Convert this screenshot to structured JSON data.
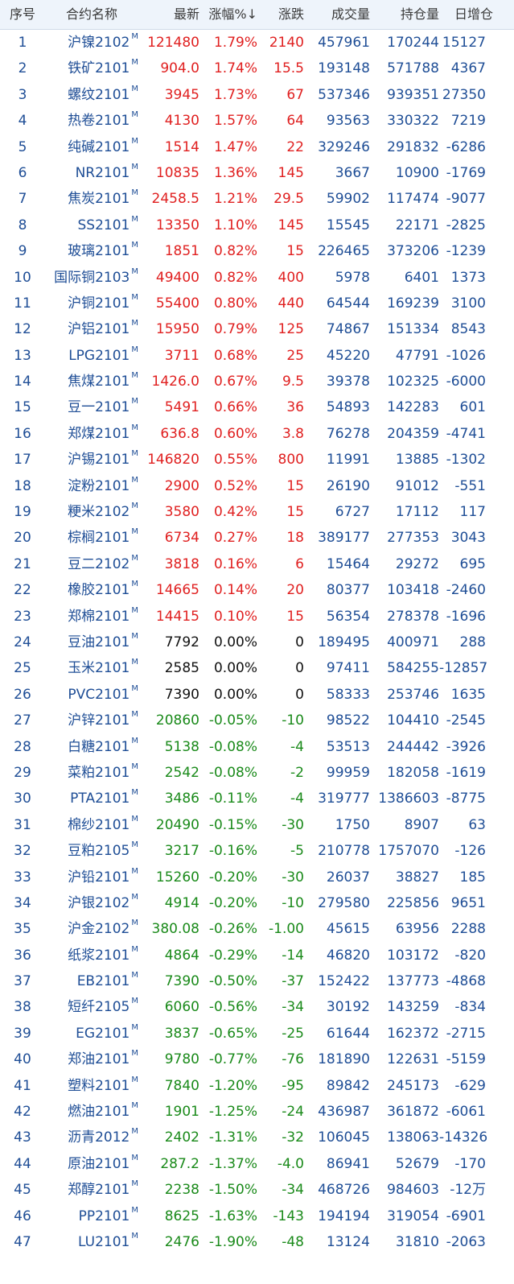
{
  "headers": {
    "idx": "序号",
    "name": "合约名称",
    "price": "最新",
    "pct": "涨幅%↓",
    "chg": "涨跌",
    "vol": "成交量",
    "oi": "持仓量",
    "day": "日增仓"
  },
  "main_badge": "M",
  "colors": {
    "up": "#e02020",
    "down": "#1a8a1a",
    "flat": "#111111",
    "text": "#1f4e96"
  },
  "rows": [
    {
      "idx": "1",
      "name": "沪镍2102",
      "price": "121480",
      "pct": "1.79%",
      "chg": "2140",
      "vol": "457961",
      "oi": "170244",
      "day": "15127",
      "dir": "up"
    },
    {
      "idx": "2",
      "name": "铁矿2101",
      "price": "904.0",
      "pct": "1.74%",
      "chg": "15.5",
      "vol": "193148",
      "oi": "571788",
      "day": "4367",
      "dir": "up"
    },
    {
      "idx": "3",
      "name": "螺纹2101",
      "price": "3945",
      "pct": "1.73%",
      "chg": "67",
      "vol": "537346",
      "oi": "939351",
      "day": "27350",
      "dir": "up"
    },
    {
      "idx": "4",
      "name": "热卷2101",
      "price": "4130",
      "pct": "1.57%",
      "chg": "64",
      "vol": "93563",
      "oi": "330322",
      "day": "7219",
      "dir": "up"
    },
    {
      "idx": "5",
      "name": "纯碱2101",
      "price": "1514",
      "pct": "1.47%",
      "chg": "22",
      "vol": "329246",
      "oi": "291832",
      "day": "-6286",
      "dir": "up"
    },
    {
      "idx": "6",
      "name": "NR2101",
      "price": "10835",
      "pct": "1.36%",
      "chg": "145",
      "vol": "3667",
      "oi": "10900",
      "day": "-1769",
      "dir": "up"
    },
    {
      "idx": "7",
      "name": "焦炭2101",
      "price": "2458.5",
      "pct": "1.21%",
      "chg": "29.5",
      "vol": "59902",
      "oi": "117474",
      "day": "-9077",
      "dir": "up"
    },
    {
      "idx": "8",
      "name": "SS2101",
      "price": "13350",
      "pct": "1.10%",
      "chg": "145",
      "vol": "15545",
      "oi": "22171",
      "day": "-2825",
      "dir": "up"
    },
    {
      "idx": "9",
      "name": "玻璃2101",
      "price": "1851",
      "pct": "0.82%",
      "chg": "15",
      "vol": "226465",
      "oi": "373206",
      "day": "-1239",
      "dir": "up"
    },
    {
      "idx": "10",
      "name": "国际铜2103",
      "price": "49400",
      "pct": "0.82%",
      "chg": "400",
      "vol": "5978",
      "oi": "6401",
      "day": "1373",
      "dir": "up"
    },
    {
      "idx": "11",
      "name": "沪铜2101",
      "price": "55400",
      "pct": "0.80%",
      "chg": "440",
      "vol": "64544",
      "oi": "169239",
      "day": "3100",
      "dir": "up"
    },
    {
      "idx": "12",
      "name": "沪铝2101",
      "price": "15950",
      "pct": "0.79%",
      "chg": "125",
      "vol": "74867",
      "oi": "151334",
      "day": "8543",
      "dir": "up"
    },
    {
      "idx": "13",
      "name": "LPG2101",
      "price": "3711",
      "pct": "0.68%",
      "chg": "25",
      "vol": "45220",
      "oi": "47791",
      "day": "-1026",
      "dir": "up"
    },
    {
      "idx": "14",
      "name": "焦煤2101",
      "price": "1426.0",
      "pct": "0.67%",
      "chg": "9.5",
      "vol": "39378",
      "oi": "102325",
      "day": "-6000",
      "dir": "up"
    },
    {
      "idx": "15",
      "name": "豆一2101",
      "price": "5491",
      "pct": "0.66%",
      "chg": "36",
      "vol": "54893",
      "oi": "142283",
      "day": "601",
      "dir": "up"
    },
    {
      "idx": "16",
      "name": "郑煤2101",
      "price": "636.8",
      "pct": "0.60%",
      "chg": "3.8",
      "vol": "76278",
      "oi": "204359",
      "day": "-4741",
      "dir": "up"
    },
    {
      "idx": "17",
      "name": "沪锡2101",
      "price": "146820",
      "pct": "0.55%",
      "chg": "800",
      "vol": "11991",
      "oi": "13885",
      "day": "-1302",
      "dir": "up"
    },
    {
      "idx": "18",
      "name": "淀粉2101",
      "price": "2900",
      "pct": "0.52%",
      "chg": "15",
      "vol": "26190",
      "oi": "91012",
      "day": "-551",
      "dir": "up"
    },
    {
      "idx": "19",
      "name": "粳米2102",
      "price": "3580",
      "pct": "0.42%",
      "chg": "15",
      "vol": "6727",
      "oi": "17112",
      "day": "117",
      "dir": "up"
    },
    {
      "idx": "20",
      "name": "棕榈2101",
      "price": "6734",
      "pct": "0.27%",
      "chg": "18",
      "vol": "389177",
      "oi": "277353",
      "day": "3043",
      "dir": "up"
    },
    {
      "idx": "21",
      "name": "豆二2102",
      "price": "3818",
      "pct": "0.16%",
      "chg": "6",
      "vol": "15464",
      "oi": "29272",
      "day": "695",
      "dir": "up"
    },
    {
      "idx": "22",
      "name": "橡胶2101",
      "price": "14665",
      "pct": "0.14%",
      "chg": "20",
      "vol": "80377",
      "oi": "103418",
      "day": "-2460",
      "dir": "up"
    },
    {
      "idx": "23",
      "name": "郑棉2101",
      "price": "14415",
      "pct": "0.10%",
      "chg": "15",
      "vol": "56354",
      "oi": "278378",
      "day": "-1696",
      "dir": "up"
    },
    {
      "idx": "24",
      "name": "豆油2101",
      "price": "7792",
      "pct": "0.00%",
      "chg": "0",
      "vol": "189495",
      "oi": "400971",
      "day": "288",
      "dir": "flat"
    },
    {
      "idx": "25",
      "name": "玉米2101",
      "price": "2585",
      "pct": "0.00%",
      "chg": "0",
      "vol": "97411",
      "oi": "584255",
      "day": "-12857",
      "dir": "flat"
    },
    {
      "idx": "26",
      "name": "PVC2101",
      "price": "7390",
      "pct": "0.00%",
      "chg": "0",
      "vol": "58333",
      "oi": "253746",
      "day": "1635",
      "dir": "flat"
    },
    {
      "idx": "27",
      "name": "沪锌2101",
      "price": "20860",
      "pct": "-0.05%",
      "chg": "-10",
      "vol": "98522",
      "oi": "104410",
      "day": "-2545",
      "dir": "down"
    },
    {
      "idx": "28",
      "name": "白糖2101",
      "price": "5138",
      "pct": "-0.08%",
      "chg": "-4",
      "vol": "53513",
      "oi": "244442",
      "day": "-3926",
      "dir": "down"
    },
    {
      "idx": "29",
      "name": "菜粕2101",
      "price": "2542",
      "pct": "-0.08%",
      "chg": "-2",
      "vol": "99959",
      "oi": "182058",
      "day": "-1619",
      "dir": "down"
    },
    {
      "idx": "30",
      "name": "PTA2101",
      "price": "3486",
      "pct": "-0.11%",
      "chg": "-4",
      "vol": "319777",
      "oi": "1386603",
      "day": "-8775",
      "dir": "down"
    },
    {
      "idx": "31",
      "name": "棉纱2101",
      "price": "20490",
      "pct": "-0.15%",
      "chg": "-30",
      "vol": "1750",
      "oi": "8907",
      "day": "63",
      "dir": "down"
    },
    {
      "idx": "32",
      "name": "豆粕2105",
      "price": "3217",
      "pct": "-0.16%",
      "chg": "-5",
      "vol": "210778",
      "oi": "1757070",
      "day": "-126",
      "dir": "down"
    },
    {
      "idx": "33",
      "name": "沪铅2101",
      "price": "15260",
      "pct": "-0.20%",
      "chg": "-30",
      "vol": "26037",
      "oi": "38827",
      "day": "185",
      "dir": "down"
    },
    {
      "idx": "34",
      "name": "沪银2102",
      "price": "4914",
      "pct": "-0.20%",
      "chg": "-10",
      "vol": "279580",
      "oi": "225856",
      "day": "9651",
      "dir": "down"
    },
    {
      "idx": "35",
      "name": "沪金2102",
      "price": "380.08",
      "pct": "-0.26%",
      "chg": "-1.00",
      "vol": "45615",
      "oi": "63956",
      "day": "2288",
      "dir": "down"
    },
    {
      "idx": "36",
      "name": "纸浆2101",
      "price": "4864",
      "pct": "-0.29%",
      "chg": "-14",
      "vol": "46820",
      "oi": "103172",
      "day": "-820",
      "dir": "down"
    },
    {
      "idx": "37",
      "name": "EB2101",
      "price": "7390",
      "pct": "-0.50%",
      "chg": "-37",
      "vol": "152422",
      "oi": "137773",
      "day": "-4868",
      "dir": "down"
    },
    {
      "idx": "38",
      "name": "短纤2105",
      "price": "6060",
      "pct": "-0.56%",
      "chg": "-34",
      "vol": "30192",
      "oi": "143259",
      "day": "-834",
      "dir": "down"
    },
    {
      "idx": "39",
      "name": "EG2101",
      "price": "3837",
      "pct": "-0.65%",
      "chg": "-25",
      "vol": "61644",
      "oi": "162372",
      "day": "-2715",
      "dir": "down"
    },
    {
      "idx": "40",
      "name": "郑油2101",
      "price": "9780",
      "pct": "-0.77%",
      "chg": "-76",
      "vol": "181890",
      "oi": "122631",
      "day": "-5159",
      "dir": "down"
    },
    {
      "idx": "41",
      "name": "塑料2101",
      "price": "7840",
      "pct": "-1.20%",
      "chg": "-95",
      "vol": "89842",
      "oi": "245173",
      "day": "-629",
      "dir": "down"
    },
    {
      "idx": "42",
      "name": "燃油2101",
      "price": "1901",
      "pct": "-1.25%",
      "chg": "-24",
      "vol": "436987",
      "oi": "361872",
      "day": "-6061",
      "dir": "down"
    },
    {
      "idx": "43",
      "name": "沥青2012",
      "price": "2402",
      "pct": "-1.31%",
      "chg": "-32",
      "vol": "106045",
      "oi": "138063",
      "day": "-14326",
      "dir": "down"
    },
    {
      "idx": "44",
      "name": "原油2101",
      "price": "287.2",
      "pct": "-1.37%",
      "chg": "-4.0",
      "vol": "86941",
      "oi": "52679",
      "day": "-170",
      "dir": "down"
    },
    {
      "idx": "45",
      "name": "郑醇2101",
      "price": "2238",
      "pct": "-1.50%",
      "chg": "-34",
      "vol": "468726",
      "oi": "984603",
      "day": "-12万",
      "dir": "down"
    },
    {
      "idx": "46",
      "name": "PP2101",
      "price": "8625",
      "pct": "-1.63%",
      "chg": "-143",
      "vol": "194194",
      "oi": "319054",
      "day": "-6901",
      "dir": "down"
    },
    {
      "idx": "47",
      "name": "LU2101",
      "price": "2476",
      "pct": "-1.90%",
      "chg": "-48",
      "vol": "13124",
      "oi": "31810",
      "day": "-2063",
      "dir": "down"
    }
  ]
}
